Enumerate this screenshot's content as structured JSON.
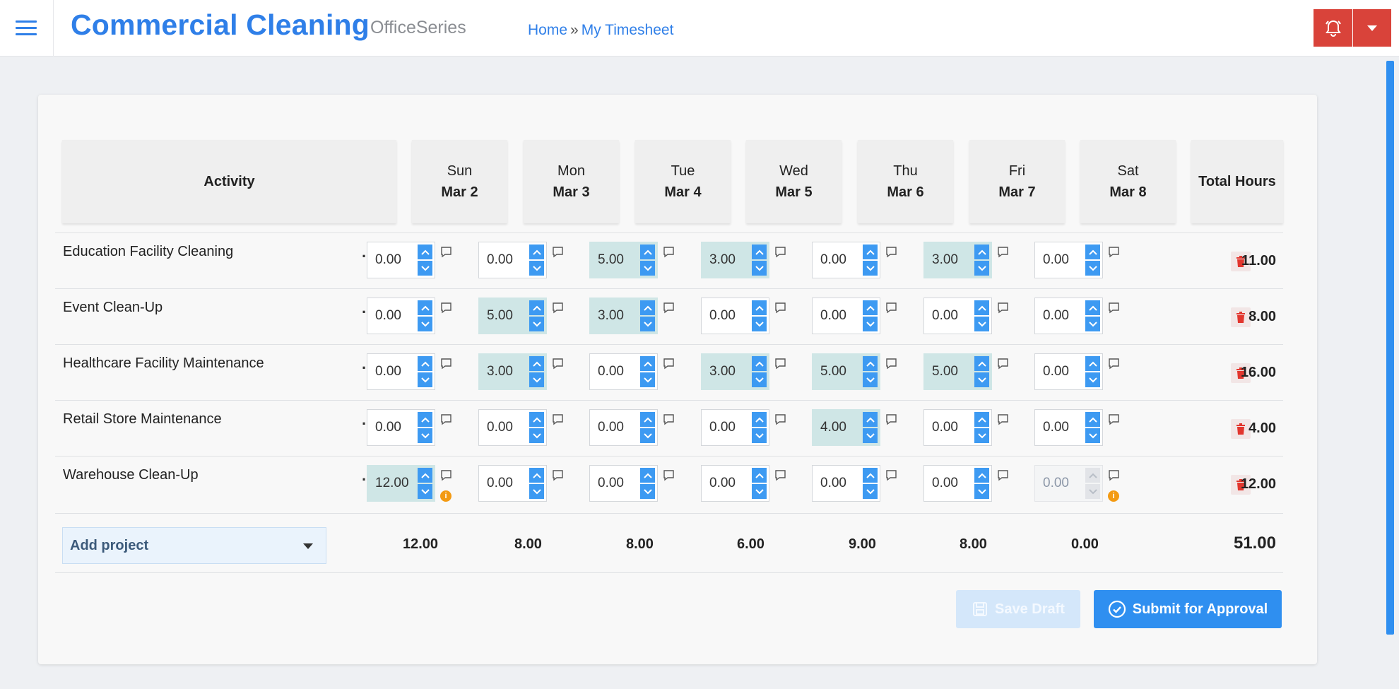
{
  "header": {
    "app_title": "Commercial Cleaning",
    "app_series": "OfficeSeries",
    "breadcrumb": {
      "home": "Home",
      "separator": "»",
      "current": "My Timesheet"
    },
    "icons": {
      "menu": "hamburger-menu-icon",
      "bell": "bell-alert-icon",
      "caret": "caret-down-icon"
    },
    "accent_color": "#2f7fe8",
    "alert_color": "#d9433a"
  },
  "table": {
    "activity_header": "Activity",
    "total_header": "Total Hours",
    "days": [
      {
        "day": "Sun",
        "date": "Mar 2"
      },
      {
        "day": "Mon",
        "date": "Mar 3"
      },
      {
        "day": "Tue",
        "date": "Mar 4"
      },
      {
        "day": "Wed",
        "date": "Mar 5"
      },
      {
        "day": "Thu",
        "date": "Mar 6"
      },
      {
        "day": "Fri",
        "date": "Mar 7"
      },
      {
        "day": "Sat",
        "date": "Mar 8"
      }
    ],
    "rows": [
      {
        "activity": "Education Facility Cleaning",
        "menu": "···",
        "hours": [
          "0.00",
          "0.00",
          "5.00",
          "3.00",
          "0.00",
          "3.00",
          "0.00"
        ],
        "total": "11.00"
      },
      {
        "activity": "Event Clean-Up",
        "menu": "···",
        "hours": [
          "0.00",
          "5.00",
          "3.00",
          "0.00",
          "0.00",
          "0.00",
          "0.00"
        ],
        "total": "8.00"
      },
      {
        "activity": "Healthcare Facility Maintenance",
        "menu": "···",
        "hours": [
          "0.00",
          "3.00",
          "0.00",
          "3.00",
          "5.00",
          "5.00",
          "0.00"
        ],
        "total": "16.00"
      },
      {
        "activity": "Retail Store Maintenance",
        "menu": "···",
        "hours": [
          "0.00",
          "0.00",
          "0.00",
          "0.00",
          "4.00",
          "0.00",
          "0.00"
        ],
        "total": "4.00"
      },
      {
        "activity": "Warehouse Clean-Up",
        "menu": "···",
        "hours": [
          "12.00",
          "0.00",
          "0.00",
          "0.00",
          "0.00",
          "0.00",
          "0.00"
        ],
        "total": "12.00",
        "warnings": [
          0,
          6
        ],
        "disabled": [
          6
        ]
      }
    ],
    "day_totals": [
      "12.00",
      "8.00",
      "8.00",
      "6.00",
      "9.00",
      "8.00",
      "0.00"
    ],
    "grand_total": "51.00",
    "filled_cell_color": "#cfe6e6"
  },
  "add_project": {
    "label": "Add project"
  },
  "actions": {
    "save_draft": "Save Draft",
    "submit": "Submit for Approval"
  }
}
